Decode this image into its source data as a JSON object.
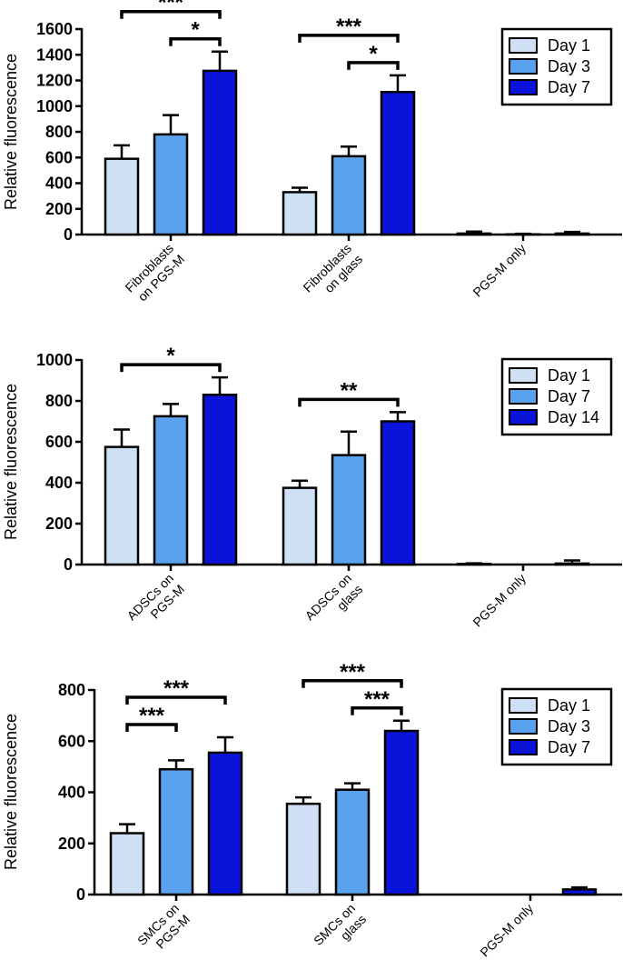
{
  "chart_data": [
    {
      "type": "bar",
      "ylabel": "Relative fluorescence",
      "ylim": [
        0,
        1600
      ],
      "yticks": [
        0,
        200,
        400,
        600,
        800,
        1000,
        1200,
        1400,
        1600
      ],
      "categories": [
        "Fibroblasts on PGS-M",
        "Fibroblasts on glass",
        "PGS-M only"
      ],
      "category_lines": [
        [
          "Fibroblasts",
          "on PGS-M"
        ],
        [
          "Fibroblasts",
          "on glass"
        ],
        [
          "PGS-M only"
        ]
      ],
      "series": [
        {
          "name": "Day 1",
          "color": "#cfe0f5",
          "values": [
            590,
            330,
            8
          ],
          "errors": [
            105,
            35,
            15
          ]
        },
        {
          "name": "Day 3",
          "color": "#5aa2ee",
          "values": [
            780,
            610,
            2
          ],
          "errors": [
            150,
            75,
            4
          ]
        },
        {
          "name": "Day 7",
          "color": "#0a14d8",
          "values": [
            1275,
            1110,
            8
          ],
          "errors": [
            150,
            130,
            12
          ]
        }
      ],
      "legend_position": "top-right",
      "significance": [
        {
          "group": 0,
          "from": 0,
          "to": 2,
          "label": "***",
          "level": 1
        },
        {
          "group": 0,
          "from": 1,
          "to": 2,
          "label": "*",
          "level": 0
        },
        {
          "group": 1,
          "from": 0,
          "to": 2,
          "label": "***",
          "level": 1
        },
        {
          "group": 1,
          "from": 1,
          "to": 2,
          "label": "*",
          "level": 0
        }
      ]
    },
    {
      "type": "bar",
      "ylabel": "Relative fluorescence",
      "ylim": [
        0,
        1000
      ],
      "yticks": [
        0,
        200,
        400,
        600,
        800,
        1000
      ],
      "categories": [
        "ADSCs on PGS-M",
        "ADSCs on glass",
        "PGS-M only"
      ],
      "category_lines": [
        [
          "ADSCs on",
          "PGS-M"
        ],
        [
          "ADSCs on",
          "glass"
        ],
        [
          "PGS-M only"
        ]
      ],
      "series": [
        {
          "name": "Day 1",
          "color": "#cfe0f5",
          "values": [
            575,
            375,
            3
          ],
          "errors": [
            85,
            35,
            3
          ]
        },
        {
          "name": "Day 7",
          "color": "#5aa2ee",
          "values": [
            725,
            535,
            0
          ],
          "errors": [
            60,
            115,
            0
          ]
        },
        {
          "name": "Day 14",
          "color": "#0a14d8",
          "values": [
            830,
            700,
            5
          ],
          "errors": [
            85,
            45,
            15
          ]
        }
      ],
      "legend_position": "top-right",
      "significance": [
        {
          "group": 0,
          "from": 0,
          "to": 2,
          "label": "*",
          "level": 0
        },
        {
          "group": 1,
          "from": 0,
          "to": 2,
          "label": "**",
          "level": 0
        }
      ]
    },
    {
      "type": "bar",
      "ylabel": "Relative fluorescence",
      "ylim": [
        0,
        800
      ],
      "yticks": [
        0,
        200,
        400,
        600,
        800
      ],
      "categories": [
        "SMCs on PGS-M",
        "SMCs on glass",
        "PGS-M only"
      ],
      "category_lines": [
        [
          "SMCs on",
          "PGS-M"
        ],
        [
          "SMCs on",
          "glass"
        ],
        [
          "PGS-M only"
        ]
      ],
      "series": [
        {
          "name": "Day 1",
          "color": "#cfe0f5",
          "values": [
            240,
            355,
            0
          ],
          "errors": [
            35,
            25,
            0
          ]
        },
        {
          "name": "Day 3",
          "color": "#5aa2ee",
          "values": [
            490,
            410,
            0
          ],
          "errors": [
            35,
            25,
            0
          ]
        },
        {
          "name": "Day 7",
          "color": "#0a14d8",
          "values": [
            555,
            640,
            20
          ],
          "errors": [
            60,
            40,
            8
          ]
        }
      ],
      "legend_position": "top-right",
      "significance": [
        {
          "group": 0,
          "from": 0,
          "to": 1,
          "label": "***",
          "level": 0
        },
        {
          "group": 0,
          "from": 0,
          "to": 2,
          "label": "***",
          "level": 1
        },
        {
          "group": 1,
          "from": 1,
          "to": 2,
          "label": "***",
          "level": 0
        },
        {
          "group": 1,
          "from": 0,
          "to": 2,
          "label": "***",
          "level": 1
        }
      ]
    }
  ]
}
